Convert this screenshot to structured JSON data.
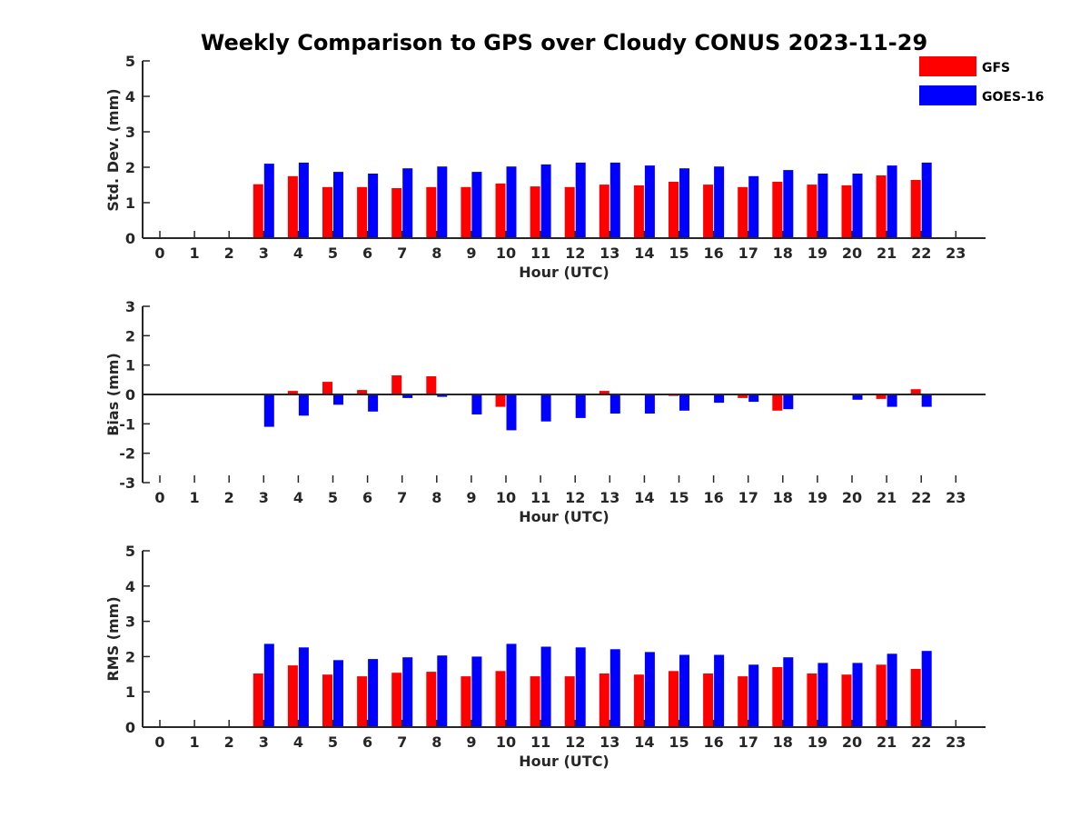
{
  "chart_data": {
    "type": "bar",
    "title": "Weekly Comparison to GPS over Cloudy CONUS 2023-11-29",
    "legend": {
      "placement": "top-right",
      "entries": [
        {
          "label": "GFS",
          "color": "#ff0000"
        },
        {
          "label": "GOES-16",
          "color": "#0000ff"
        }
      ]
    },
    "categories": [
      "0",
      "1",
      "2",
      "3",
      "4",
      "5",
      "6",
      "7",
      "8",
      "9",
      "10",
      "11",
      "12",
      "13",
      "14",
      "15",
      "16",
      "17",
      "18",
      "19",
      "20",
      "21",
      "22",
      "23"
    ],
    "panels": [
      {
        "id": "std",
        "ylabel": "Std. Dev. (mm)",
        "xlabel": "Hour (UTC)",
        "ylim": [
          0,
          5
        ],
        "yticks": [
          "0",
          "1",
          "2",
          "3",
          "4",
          "5"
        ],
        "series": [
          {
            "name": "GFS",
            "color": "#ff0000",
            "values": [
              null,
              null,
              null,
              1.52,
              1.75,
              1.44,
              1.44,
              1.41,
              1.44,
              1.44,
              1.54,
              1.46,
              1.44,
              1.51,
              1.49,
              1.59,
              1.51,
              1.44,
              1.59,
              1.51,
              1.49,
              1.77,
              1.64,
              null
            ]
          },
          {
            "name": "GOES-16",
            "color": "#0000ff",
            "values": [
              null,
              null,
              null,
              2.1,
              2.13,
              1.87,
              1.82,
              1.97,
              2.02,
              1.87,
              2.02,
              2.08,
              2.13,
              2.13,
              2.05,
              1.97,
              2.02,
              1.75,
              1.92,
              1.82,
              1.82,
              2.05,
              2.13,
              null
            ]
          }
        ]
      },
      {
        "id": "bias",
        "ylabel": "Bias (mm)",
        "xlabel": "Hour (UTC)",
        "ylim": [
          -3,
          3
        ],
        "yticks": [
          "-3",
          "-2",
          "-1",
          "0",
          "1",
          "2",
          "3"
        ],
        "series": [
          {
            "name": "GFS",
            "color": "#ff0000",
            "values": [
              null,
              null,
              null,
              0,
              0.12,
              0.43,
              0.15,
              0.65,
              0.62,
              0,
              -0.42,
              0,
              0,
              0.12,
              -0.03,
              -0.05,
              0,
              -0.12,
              -0.55,
              -0.03,
              0.03,
              -0.15,
              0.18,
              null
            ]
          },
          {
            "name": "GOES-16",
            "color": "#0000ff",
            "values": [
              null,
              null,
              null,
              -1.1,
              -0.72,
              -0.35,
              -0.58,
              -0.12,
              -0.08,
              -0.68,
              -1.22,
              -0.92,
              -0.8,
              -0.65,
              -0.65,
              -0.55,
              -0.28,
              -0.25,
              -0.5,
              -0.02,
              -0.18,
              -0.42,
              -0.42,
              null
            ]
          }
        ]
      },
      {
        "id": "rms",
        "ylabel": "RMS (mm)",
        "xlabel": "Hour (UTC)",
        "ylim": [
          0,
          5
        ],
        "yticks": [
          "0",
          "1",
          "2",
          "3",
          "4",
          "5"
        ],
        "series": [
          {
            "name": "GFS",
            "color": "#ff0000",
            "values": [
              null,
              null,
              null,
              1.52,
              1.75,
              1.49,
              1.44,
              1.54,
              1.57,
              1.44,
              1.59,
              1.44,
              1.44,
              1.52,
              1.49,
              1.59,
              1.52,
              1.44,
              1.7,
              1.52,
              1.49,
              1.77,
              1.65,
              null
            ]
          },
          {
            "name": "GOES-16",
            "color": "#0000ff",
            "values": [
              null,
              null,
              null,
              2.36,
              2.26,
              1.9,
              1.93,
              1.98,
              2.03,
              2.0,
              2.36,
              2.28,
              2.26,
              2.21,
              2.13,
              2.05,
              2.05,
              1.77,
              1.98,
              1.82,
              1.82,
              2.08,
              2.16,
              null
            ]
          }
        ]
      }
    ]
  }
}
